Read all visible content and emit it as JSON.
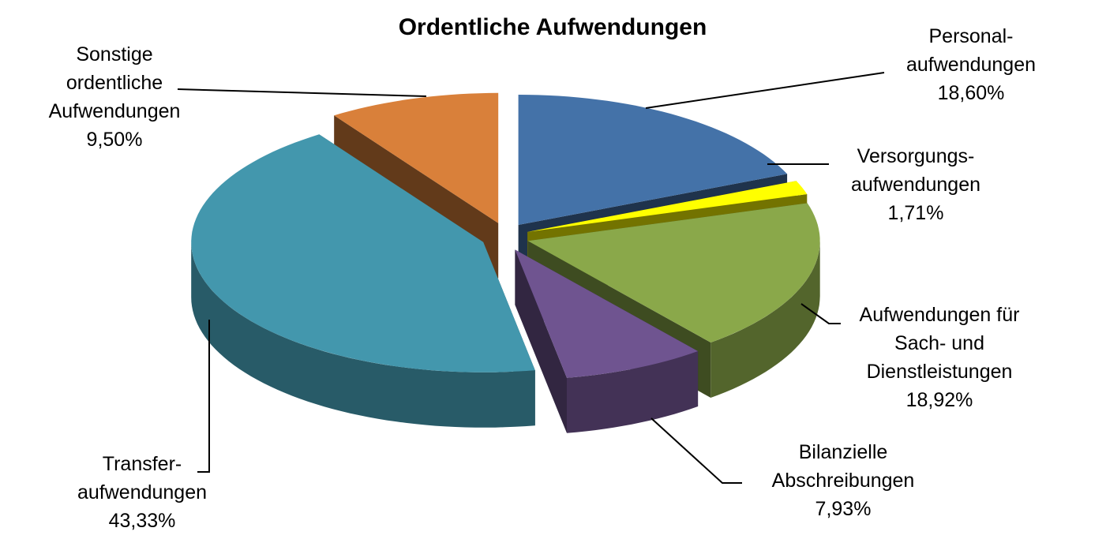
{
  "chart_data": {
    "type": "pie",
    "title": "Ordentliche Aufwendungen",
    "categories": [
      "Personal-\naufwendungen",
      "Versorgungs-\naufwendungen",
      "Aufwendungen für\nSach- und\nDienstleistungen",
      "Bilanzielle\nAbschreibungen",
      "Transfer-\naufwendungen",
      "Sonstige\nordentliche\nAufwendungen"
    ],
    "values": [
      18.6,
      1.71,
      18.92,
      7.93,
      43.33,
      9.5
    ],
    "value_labels": [
      "18,60%",
      "1,71%",
      "18,92%",
      "7,93%",
      "43,33%",
      "9,50%"
    ],
    "colors": [
      "#4472a8",
      "#ffff00",
      "#8aa84a",
      "#6f5490",
      "#4397ad",
      "#d9803a"
    ]
  }
}
